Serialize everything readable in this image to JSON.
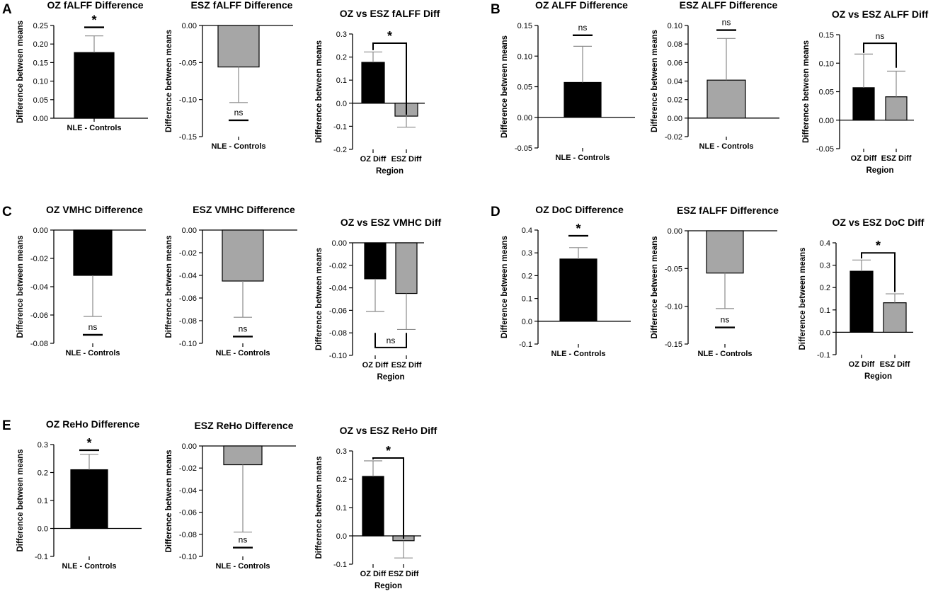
{
  "figure": {
    "panels": [
      "A",
      "B",
      "C",
      "D",
      "E"
    ]
  },
  "colors": {
    "oz_bar": "#000000",
    "esz_bar": "#a6a6a6",
    "error_bar": "#8a8a8a",
    "axis": "#000000"
  },
  "chart_data": [
    {
      "panel": "A",
      "type": "bar",
      "title": "OZ fALFF Difference",
      "ylabel": "Difference between means",
      "xlabel": "",
      "categories": [
        "NLE - Controls"
      ],
      "values": [
        0.177
      ],
      "errors": [
        0.045
      ],
      "bar_colors": [
        "#000000"
      ],
      "ylim": [
        0,
        0.25
      ],
      "yticks": [
        "0.00",
        "0.05",
        "0.10",
        "0.15",
        "0.20",
        "0.25"
      ],
      "significance": [
        {
          "label": "*",
          "value": 0.245
        }
      ]
    },
    {
      "type": "bar",
      "title": "ESZ fALFF Difference",
      "ylabel": "Difference between means",
      "xlabel": "",
      "categories": [
        "NLE - Controls"
      ],
      "values": [
        -0.056
      ],
      "errors": [
        0.048
      ],
      "bar_colors": [
        "#a6a6a6"
      ],
      "ylim": [
        -0.15,
        0
      ],
      "yticks": [
        "-0.15",
        "-0.10",
        "-0.05",
        "0.00"
      ],
      "significance": [
        {
          "label": "ns",
          "value": -0.128
        }
      ]
    },
    {
      "type": "bar",
      "title": "OZ vs ESZ fALFF Diff",
      "ylabel": "Difference between means",
      "xlabel": "Region",
      "categories": [
        "OZ Diff",
        "ESZ Diff"
      ],
      "values": [
        0.177,
        -0.056
      ],
      "errors": [
        0.045,
        0.048
      ],
      "bar_colors": [
        "#000000",
        "#a6a6a6"
      ],
      "ylim": [
        -0.2,
        0.3
      ],
      "yticks": [
        "-0.2",
        "-0.1",
        "0.0",
        "0.1",
        "0.2",
        "0.3"
      ],
      "comparison": {
        "label": "*",
        "value": 0.26,
        "drop_to": [
          0.23,
          -0.05
        ]
      }
    },
    {
      "panel": "B",
      "type": "bar",
      "title": "OZ ALFF Difference",
      "ylabel": "Difference between means",
      "xlabel": "",
      "categories": [
        "NLE - Controls"
      ],
      "values": [
        0.057
      ],
      "errors": [
        0.059
      ],
      "bar_colors": [
        "#000000"
      ],
      "ylim": [
        -0.05,
        0.15
      ],
      "yticks": [
        "-0.05",
        "0.00",
        "0.05",
        "0.10",
        "0.15"
      ],
      "significance": [
        {
          "label": "ns",
          "value": 0.134
        }
      ]
    },
    {
      "type": "bar",
      "title": "ESZ ALFF Difference",
      "ylabel": "Difference between means",
      "xlabel": "",
      "categories": [
        "NLE - Controls"
      ],
      "values": [
        0.041
      ],
      "errors": [
        0.045
      ],
      "bar_colors": [
        "#a6a6a6"
      ],
      "ylim": [
        -0.02,
        0.1
      ],
      "yticks": [
        "-0.02",
        "0.00",
        "0.02",
        "0.04",
        "0.06",
        "0.08",
        "0.10"
      ],
      "significance": [
        {
          "label": "ns",
          "value": 0.095
        }
      ]
    },
    {
      "type": "bar",
      "title": "OZ vs ESZ ALFF Diff",
      "ylabel": "Difference between means",
      "xlabel": "Region",
      "categories": [
        "OZ Diff",
        "ESZ Diff"
      ],
      "values": [
        0.057,
        0.041
      ],
      "errors": [
        0.059,
        0.045
      ],
      "bar_colors": [
        "#000000",
        "#a6a6a6"
      ],
      "ylim": [
        -0.05,
        0.15
      ],
      "yticks": [
        "-0.05",
        "0.00",
        "0.05",
        "0.10",
        "0.15"
      ],
      "comparison": {
        "label": "ns",
        "value": 0.135,
        "drop_to": [
          0.118,
          0.092
        ]
      }
    },
    {
      "panel": "C",
      "type": "bar",
      "title": "OZ VMHC Difference",
      "ylabel": "Difference between means",
      "xlabel": "",
      "categories": [
        "NLE - Controls"
      ],
      "values": [
        -0.032
      ],
      "errors": [
        0.029
      ],
      "bar_colors": [
        "#000000"
      ],
      "ylim": [
        -0.08,
        0
      ],
      "yticks": [
        "-0.08",
        "-0.06",
        "-0.04",
        "-0.02",
        "0.00"
      ],
      "significance": [
        {
          "label": "ns",
          "value": -0.074
        }
      ]
    },
    {
      "type": "bar",
      "title": "ESZ VMHC Difference",
      "ylabel": "Difference between means",
      "xlabel": "",
      "categories": [
        "NLE - Controls"
      ],
      "values": [
        -0.045
      ],
      "errors": [
        0.032
      ],
      "bar_colors": [
        "#a6a6a6"
      ],
      "ylim": [
        -0.1,
        0
      ],
      "yticks": [
        "-0.10",
        "-0.08",
        "-0.06",
        "-0.04",
        "-0.02",
        "0.00"
      ],
      "significance": [
        {
          "label": "ns",
          "value": -0.094
        }
      ]
    },
    {
      "type": "bar",
      "title": "OZ vs ESZ VMHC Diff",
      "ylabel": "Difference between means",
      "xlabel": "Region",
      "categories": [
        "OZ Diff",
        "ESZ Diff"
      ],
      "values": [
        -0.032,
        -0.045
      ],
      "errors": [
        0.029,
        0.032
      ],
      "bar_colors": [
        "#000000",
        "#a6a6a6"
      ],
      "ylim": [
        -0.1,
        0
      ],
      "yticks": [
        "-0.10",
        "-0.08",
        "-0.06",
        "-0.04",
        "-0.02",
        "0.00"
      ],
      "comparison": {
        "label": "ns",
        "value": -0.093,
        "drop_to": [
          -0.08,
          -0.08
        ],
        "below": true
      }
    },
    {
      "panel": "D",
      "type": "bar",
      "title": "OZ DoC Difference",
      "ylabel": "Difference between means",
      "xlabel": "",
      "categories": [
        "NLE - Controls"
      ],
      "values": [
        0.273
      ],
      "errors": [
        0.05
      ],
      "bar_colors": [
        "#000000"
      ],
      "ylim": [
        -0.1,
        0.4
      ],
      "yticks": [
        "-0.1",
        "0.0",
        "0.1",
        "0.2",
        "0.3",
        "0.4"
      ],
      "significance": [
        {
          "label": "*",
          "value": 0.375
        }
      ]
    },
    {
      "type": "bar",
      "title": "ESZ fALFF Difference",
      "ylabel": "Difference between means",
      "xlabel": "",
      "categories": [
        "NLE - Controls"
      ],
      "values": [
        -0.056
      ],
      "errors": [
        0.047
      ],
      "bar_colors": [
        "#a6a6a6"
      ],
      "ylim": [
        -0.15,
        0
      ],
      "yticks": [
        "-0.15",
        "-0.10",
        "-0.05",
        "0.00"
      ],
      "significance": [
        {
          "label": "ns",
          "value": -0.128
        }
      ]
    },
    {
      "type": "bar",
      "title": "OZ vs ESZ DoC Diff",
      "ylabel": "Difference between means",
      "xlabel": "Region",
      "categories": [
        "OZ Diff",
        "ESZ Diff"
      ],
      "values": [
        0.273,
        0.132
      ],
      "errors": [
        0.05,
        0.04
      ],
      "bar_colors": [
        "#000000",
        "#a6a6a6"
      ],
      "ylim": [
        -0.1,
        0.4
      ],
      "yticks": [
        "-0.1",
        "0.0",
        "0.1",
        "0.2",
        "0.3",
        "0.4"
      ],
      "comparison": {
        "label": "*",
        "value": 0.355,
        "drop_to": [
          0.33,
          0.18
        ]
      }
    },
    {
      "panel": "E",
      "type": "bar",
      "title": "OZ ReHo Difference",
      "ylabel": "Difference between means",
      "xlabel": "",
      "categories": [
        "NLE - Controls"
      ],
      "values": [
        0.21
      ],
      "errors": [
        0.055
      ],
      "bar_colors": [
        "#000000"
      ],
      "ylim": [
        -0.1,
        0.3
      ],
      "yticks": [
        "-0.1",
        "0.0",
        "0.1",
        "0.2",
        "0.3"
      ],
      "significance": [
        {
          "label": "*",
          "value": 0.28
        }
      ]
    },
    {
      "type": "bar",
      "title": "ESZ ReHo Difference",
      "ylabel": "Difference between means",
      "xlabel": "",
      "categories": [
        "NLE - Controls"
      ],
      "values": [
        -0.017
      ],
      "errors": [
        0.061
      ],
      "bar_colors": [
        "#a6a6a6"
      ],
      "ylim": [
        -0.1,
        0
      ],
      "yticks": [
        "-0.10",
        "-0.08",
        "-0.06",
        "-0.04",
        "-0.02",
        "0.00"
      ],
      "significance": [
        {
          "label": "ns",
          "value": -0.092
        }
      ]
    },
    {
      "type": "bar",
      "title": "OZ vs ESZ ReHo Diff",
      "ylabel": "Difference between means",
      "xlabel": "Region",
      "categories": [
        "OZ Diff",
        "ESZ Diff"
      ],
      "values": [
        0.21,
        -0.017
      ],
      "errors": [
        0.055,
        0.061
      ],
      "bar_colors": [
        "#000000",
        "#a6a6a6"
      ],
      "ylim": [
        -0.1,
        0.3
      ],
      "yticks": [
        "-0.1",
        "0.0",
        "0.1",
        "0.2",
        "0.3"
      ],
      "comparison": {
        "label": "*",
        "value": 0.275,
        "drop_to": [
          0.27,
          -0.01
        ]
      }
    }
  ]
}
